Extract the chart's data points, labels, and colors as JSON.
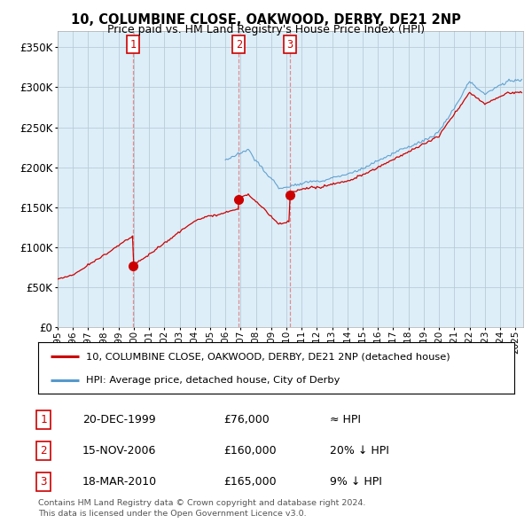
{
  "title1": "10, COLUMBINE CLOSE, OAKWOOD, DERBY, DE21 2NP",
  "title2": "Price paid vs. HM Land Registry's House Price Index (HPI)",
  "ytick_values": [
    0,
    50000,
    100000,
    150000,
    200000,
    250000,
    300000,
    350000
  ],
  "ylim": [
    0,
    370000
  ],
  "xlim_start": 1995.0,
  "xlim_end": 2025.5,
  "sale_dates": [
    1999.97,
    2006.88,
    2010.21
  ],
  "sale_prices": [
    76000,
    160000,
    165000
  ],
  "sale_labels": [
    "1",
    "2",
    "3"
  ],
  "vline_color": "#cc0000",
  "sale_marker_color": "#cc0000",
  "hpi_line_color": "#5599cc",
  "price_line_color": "#cc0000",
  "chart_bg_color": "#ddeef8",
  "background_color": "#ffffff",
  "grid_color": "#b8ccd8",
  "legend_label1": "10, COLUMBINE CLOSE, OAKWOOD, DERBY, DE21 2NP (detached house)",
  "legend_label2": "HPI: Average price, detached house, City of Derby",
  "table_rows": [
    [
      "1",
      "20-DEC-1999",
      "£76,000",
      "≈ HPI"
    ],
    [
      "2",
      "15-NOV-2006",
      "£160,000",
      "20% ↓ HPI"
    ],
    [
      "3",
      "18-MAR-2010",
      "£165,000",
      "9% ↓ HPI"
    ]
  ],
  "footnote1": "Contains HM Land Registry data © Crown copyright and database right 2024.",
  "footnote2": "This data is licensed under the Open Government Licence v3.0."
}
